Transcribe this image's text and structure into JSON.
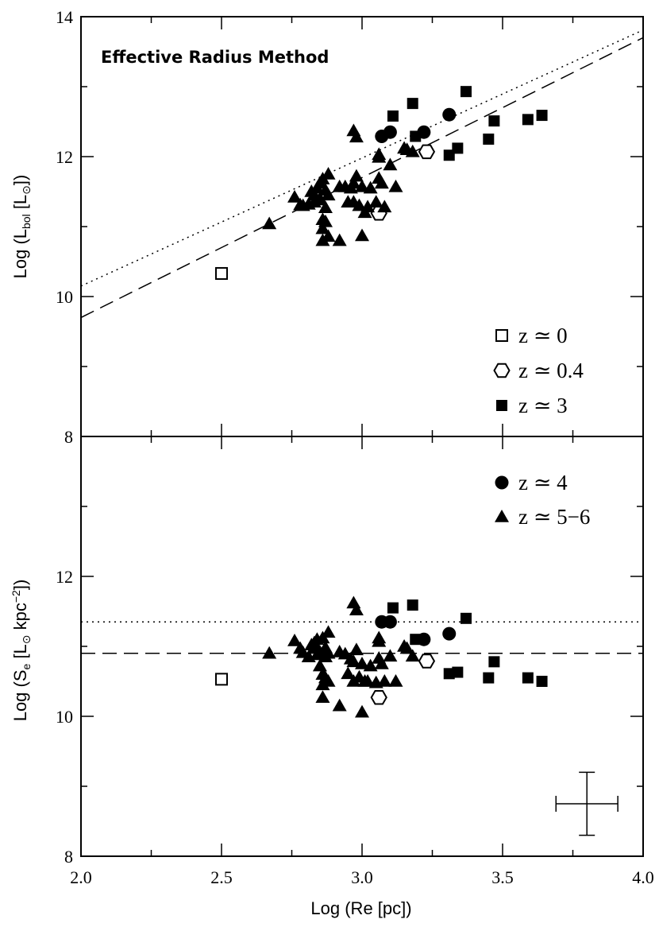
{
  "chart_data": [
    {
      "type": "scatter",
      "title": "Effective Radius Method",
      "xlabel": "Log (Re [pc])",
      "ylabel": "Log (L_bol [L_⊙])",
      "ylabel_parts": {
        "prefix": "Log (L",
        "sub": "bol",
        "mid": " [L",
        "sun": "⊙",
        "suffix": "])"
      },
      "xlim": [
        2.0,
        4.0
      ],
      "ylim": [
        8,
        14
      ],
      "xticks": [
        "2.0",
        "2.5",
        "3.0",
        "3.5",
        "4.0"
      ],
      "yticks": [
        "8",
        "10",
        "12",
        "14"
      ],
      "grid": false,
      "legend_position": "bottom-right",
      "lines": [
        {
          "style": "dotted",
          "slope": 1.83,
          "intercept": 6.49
        },
        {
          "style": "dashed",
          "slope": 2.0,
          "intercept": 5.7
        }
      ],
      "series": [
        {
          "marker": "open-square",
          "points": [
            [
              2.5,
              10.33
            ]
          ]
        },
        {
          "marker": "open-hexagon",
          "points": [
            [
              3.06,
              11.19
            ],
            [
              3.23,
              12.07
            ]
          ]
        },
        {
          "marker": "filled-square",
          "points": [
            [
              3.11,
              12.58
            ],
            [
              3.18,
              12.76
            ],
            [
              3.19,
              12.29
            ],
            [
              3.31,
              12.02
            ],
            [
              3.34,
              12.12
            ],
            [
              3.37,
              12.93
            ],
            [
              3.45,
              12.25
            ],
            [
              3.47,
              12.51
            ],
            [
              3.59,
              12.53
            ],
            [
              3.64,
              12.59
            ]
          ]
        },
        {
          "marker": "filled-circle",
          "points": [
            [
              3.07,
              12.29
            ],
            [
              3.1,
              12.35
            ],
            [
              3.22,
              12.35
            ],
            [
              3.31,
              12.6
            ]
          ]
        },
        {
          "marker": "filled-triangle",
          "points": [
            [
              2.67,
              11.04
            ],
            [
              2.76,
              11.42
            ],
            [
              2.78,
              11.31
            ],
            [
              2.79,
              11.3
            ],
            [
              2.81,
              11.32
            ],
            [
              2.82,
              11.5
            ],
            [
              2.83,
              11.45
            ],
            [
              2.83,
              11.35
            ],
            [
              2.84,
              11.55
            ],
            [
              2.84,
              11.38
            ],
            [
              2.85,
              11.62
            ],
            [
              2.85,
              11.4
            ],
            [
              2.86,
              11.68
            ],
            [
              2.86,
              11.1
            ],
            [
              2.86,
              10.97
            ],
            [
              2.86,
              10.8
            ],
            [
              2.87,
              11.52
            ],
            [
              2.87,
              11.27
            ],
            [
              2.88,
              11.75
            ],
            [
              2.88,
              11.45
            ],
            [
              2.87,
              11.07
            ],
            [
              2.88,
              10.86
            ],
            [
              2.92,
              11.57
            ],
            [
              2.92,
              10.8
            ],
            [
              2.94,
              11.57
            ],
            [
              2.95,
              11.35
            ],
            [
              2.96,
              11.55
            ],
            [
              2.97,
              11.62
            ],
            [
              2.97,
              11.35
            ],
            [
              2.97,
              12.37
            ],
            [
              2.98,
              11.72
            ],
            [
              2.98,
              12.28
            ],
            [
              2.99,
              11.3
            ],
            [
              3.0,
              11.57
            ],
            [
              3.0,
              10.87
            ],
            [
              3.01,
              11.2
            ],
            [
              3.02,
              11.28
            ],
            [
              3.03,
              11.55
            ],
            [
              3.05,
              11.35
            ],
            [
              3.06,
              11.69
            ],
            [
              3.06,
              11.99
            ],
            [
              3.06,
              12.03
            ],
            [
              3.07,
              11.62
            ],
            [
              3.08,
              11.28
            ],
            [
              3.1,
              11.88
            ],
            [
              3.12,
              11.57
            ],
            [
              3.15,
              12.12
            ],
            [
              3.16,
              12.1
            ],
            [
              3.18,
              12.07
            ]
          ]
        }
      ]
    },
    {
      "type": "scatter",
      "xlabel": "Log (Re [pc])",
      "ylabel": "Log (S_e [L_⊙ kpc^-2])",
      "ylabel_parts": {
        "prefix": "Log (S",
        "sub": "e",
        "mid": " [L",
        "sun": "⊙",
        "kpc": " kpc",
        "sup": "−2",
        "suffix": "])"
      },
      "xlim": [
        2.0,
        4.0
      ],
      "ylim": [
        8,
        14
      ],
      "xticks": [
        "2.0",
        "2.5",
        "3.0",
        "3.5",
        "4.0"
      ],
      "yticks": [
        "8",
        "10",
        "12"
      ],
      "grid": false,
      "legend_position": "top-right",
      "lines": [
        {
          "style": "dotted",
          "slope": 0,
          "intercept": 11.35
        },
        {
          "style": "dashed",
          "slope": 0,
          "intercept": 10.9
        }
      ],
      "error_bar": {
        "x": 3.8,
        "y": 8.75,
        "xerr": 0.11,
        "yerr": 0.45
      },
      "series": [
        {
          "marker": "open-square",
          "points": [
            [
              2.5,
              10.53
            ]
          ]
        },
        {
          "marker": "open-hexagon",
          "points": [
            [
              3.06,
              10.27
            ],
            [
              3.23,
              10.79
            ]
          ]
        },
        {
          "marker": "filled-square",
          "points": [
            [
              3.11,
              11.55
            ],
            [
              3.18,
              11.59
            ],
            [
              3.19,
              11.1
            ],
            [
              3.31,
              10.61
            ],
            [
              3.34,
              10.63
            ],
            [
              3.37,
              11.4
            ],
            [
              3.45,
              10.55
            ],
            [
              3.47,
              10.78
            ],
            [
              3.59,
              10.55
            ],
            [
              3.64,
              10.5
            ]
          ]
        },
        {
          "marker": "filled-circle",
          "points": [
            [
              3.07,
              11.35
            ],
            [
              3.1,
              11.35
            ],
            [
              3.22,
              11.1
            ],
            [
              3.31,
              11.18
            ]
          ]
        },
        {
          "marker": "filled-triangle",
          "points": [
            [
              2.67,
              10.9
            ],
            [
              2.76,
              11.08
            ],
            [
              2.78,
              10.97
            ],
            [
              2.79,
              10.91
            ],
            [
              2.81,
              10.85
            ],
            [
              2.82,
              11.02
            ],
            [
              2.83,
              11.05
            ],
            [
              2.83,
              10.97
            ],
            [
              2.84,
              10.88
            ],
            [
              2.84,
              11.1
            ],
            [
              2.85,
              10.72
            ],
            [
              2.85,
              10.92
            ],
            [
              2.86,
              11.12
            ],
            [
              2.86,
              10.6
            ],
            [
              2.86,
              10.45
            ],
            [
              2.86,
              10.27
            ],
            [
              2.87,
              10.98
            ],
            [
              2.87,
              10.85
            ],
            [
              2.88,
              11.2
            ],
            [
              2.88,
              10.9
            ],
            [
              2.87,
              10.55
            ],
            [
              2.88,
              10.5
            ],
            [
              2.92,
              10.92
            ],
            [
              2.92,
              10.15
            ],
            [
              2.94,
              10.89
            ],
            [
              2.95,
              10.61
            ],
            [
              2.96,
              10.82
            ],
            [
              2.97,
              10.78
            ],
            [
              2.97,
              10.5
            ],
            [
              2.97,
              11.62
            ],
            [
              2.98,
              10.95
            ],
            [
              2.98,
              11.52
            ],
            [
              2.99,
              10.56
            ],
            [
              3.0,
              10.75
            ],
            [
              3.0,
              10.06
            ],
            [
              3.01,
              10.5
            ],
            [
              3.02,
              10.5
            ],
            [
              3.03,
              10.72
            ],
            [
              3.05,
              10.48
            ],
            [
              3.06,
              10.83
            ],
            [
              3.06,
              11.07
            ],
            [
              3.06,
              11.12
            ],
            [
              3.07,
              10.75
            ],
            [
              3.08,
              10.5
            ],
            [
              3.1,
              10.86
            ],
            [
              3.12,
              10.5
            ],
            [
              3.15,
              11.0
            ],
            [
              3.16,
              10.97
            ],
            [
              3.18,
              10.86
            ]
          ]
        }
      ]
    }
  ],
  "legend": [
    {
      "marker": "open-square",
      "label": "z ≃ 0"
    },
    {
      "marker": "open-hexagon",
      "label": "z ≃ 0.4"
    },
    {
      "marker": "filled-square",
      "label": "z ≃ 3"
    },
    {
      "marker": "filled-circle",
      "label": "z ≃ 4"
    },
    {
      "marker": "filled-triangle",
      "label": "z ≃ 5−6"
    }
  ]
}
